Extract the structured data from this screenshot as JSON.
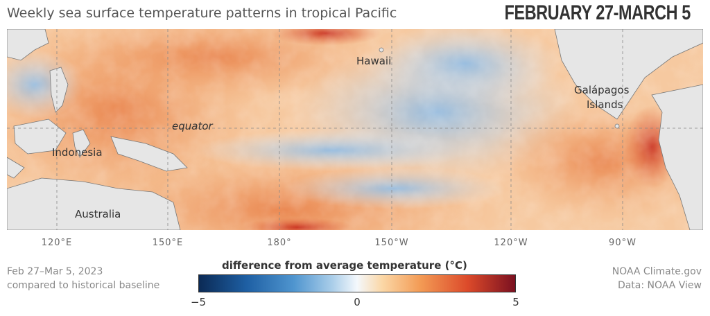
{
  "title": "Weekly sea surface temperature patterns in tropical Pacific",
  "date_headline": "FEBRUARY 27-MARCH 5",
  "map": {
    "place_labels": {
      "hawaii": "Hawaii",
      "galapagos_line1": "Galápagos",
      "galapagos_line2": "Islands",
      "equator": "equator",
      "indonesia": "Indonesia",
      "australia": "Australia"
    },
    "longitude_labels": [
      "120°E",
      "150°E",
      "180°",
      "150°W",
      "120°W",
      "90°W"
    ]
  },
  "legend": {
    "title": "difference from average temperature (°C)",
    "min_label": "−5",
    "mid_label": "0",
    "max_label": "5",
    "colors": [
      "#0b2a55",
      "#4f95cf",
      "#f4f8fc",
      "#f39b55",
      "#7a1020"
    ]
  },
  "footer_left": {
    "line1": "Feb 27–Mar 5, 2023",
    "line2": "compared to historical baseline"
  },
  "footer_right": {
    "line1": "NOAA Climate.gov",
    "line2": "Data: NOAA View"
  }
}
